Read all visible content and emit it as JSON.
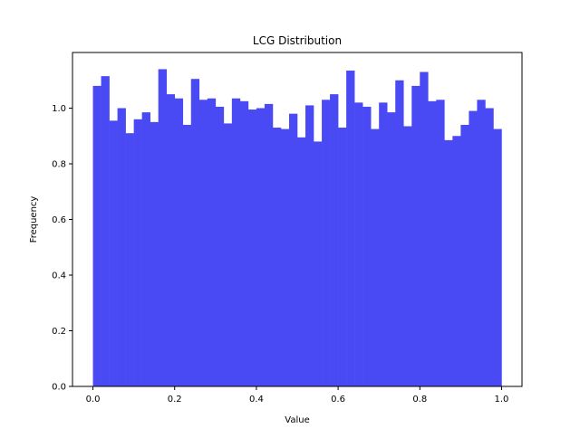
{
  "chart_data": {
    "type": "bar",
    "title": "LCG Distribution",
    "xlabel": "Value",
    "ylabel": "Frequency",
    "bar_color": "#4a4af5",
    "xlim": [
      -0.05,
      1.05
    ],
    "ylim": [
      0.0,
      1.2
    ],
    "xticks": [
      0.0,
      0.2,
      0.4,
      0.6,
      0.8,
      1.0
    ],
    "xtick_labels": [
      "0.0",
      "0.2",
      "0.4",
      "0.6",
      "0.8",
      "1.0"
    ],
    "yticks": [
      0.0,
      0.2,
      0.4,
      0.6,
      0.8,
      1.0
    ],
    "ytick_labels": [
      "0.0",
      "0.2",
      "0.4",
      "0.6",
      "0.8",
      "1.0"
    ],
    "bin_start": 0.0,
    "bin_width": 0.02,
    "values": [
      1.08,
      1.115,
      0.955,
      1.0,
      0.91,
      0.96,
      0.985,
      0.95,
      1.14,
      1.05,
      1.035,
      0.94,
      1.105,
      1.03,
      1.035,
      1.005,
      0.945,
      1.035,
      1.025,
      0.995,
      1.0,
      1.015,
      0.93,
      0.925,
      0.98,
      0.895,
      1.01,
      0.88,
      1.03,
      1.05,
      0.93,
      1.135,
      1.02,
      1.005,
      0.925,
      1.02,
      0.985,
      1.1,
      0.935,
      1.08,
      1.13,
      1.025,
      1.03,
      0.885,
      0.9,
      0.94,
      0.99,
      1.03,
      1.0,
      0.925
    ],
    "grid": false,
    "legend": "none"
  }
}
